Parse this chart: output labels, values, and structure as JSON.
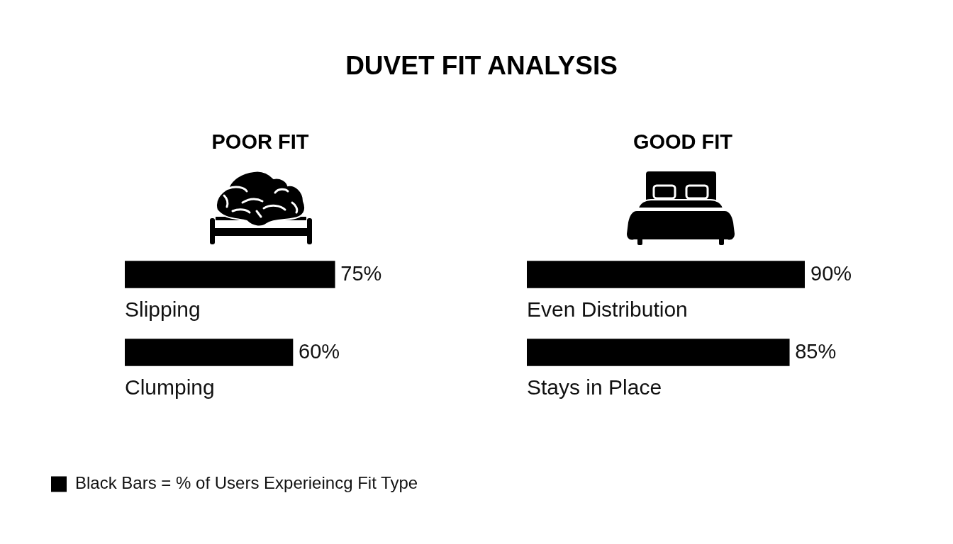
{
  "chart_data": [
    {
      "type": "other",
      "title": "DUVET FIT ANALYSIS"
    },
    {
      "type": "bar",
      "title": "POOR FIT",
      "orientation": "horizontal",
      "categories": [
        "Slipping",
        "Clumping"
      ],
      "series": [
        {
          "name": "Black Bars = % of Users Experieincg Fit Type",
          "color": "#000000",
          "values": [
            75,
            60
          ],
          "value_labels": [
            "75%",
            "60%"
          ]
        }
      ],
      "tick_labels": "y",
      "legend": "bottom left"
    },
    {
      "type": "bar",
      "title": "GOOD FIT",
      "orientation": "horizontal",
      "categories": [
        "Even Distribution",
        "Stays in Place"
      ],
      "series": [
        {
          "color": "#000000",
          "values": [
            90,
            85
          ],
          "value_labels": [
            "90%",
            "85%"
          ]
        }
      ],
      "tick_labels": "y"
    }
  ]
}
